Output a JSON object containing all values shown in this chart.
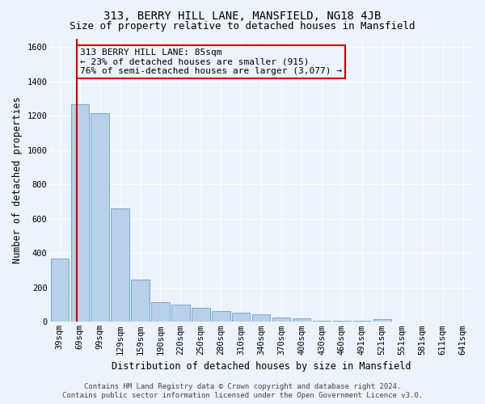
{
  "title": "313, BERRY HILL LANE, MANSFIELD, NG18 4JB",
  "subtitle": "Size of property relative to detached houses in Mansfield",
  "xlabel": "Distribution of detached houses by size in Mansfield",
  "ylabel": "Number of detached properties",
  "categories": [
    "39sqm",
    "69sqm",
    "99sqm",
    "129sqm",
    "159sqm",
    "190sqm",
    "220sqm",
    "250sqm",
    "280sqm",
    "310sqm",
    "340sqm",
    "370sqm",
    "400sqm",
    "430sqm",
    "460sqm",
    "491sqm",
    "521sqm",
    "551sqm",
    "581sqm",
    "611sqm",
    "641sqm"
  ],
  "values": [
    370,
    1265,
    1215,
    660,
    245,
    115,
    100,
    80,
    65,
    55,
    45,
    25,
    20,
    5,
    5,
    5,
    15,
    0,
    0,
    0,
    0
  ],
  "bar_color": "#b8d0ea",
  "bar_edge_color": "#6a9fc8",
  "vline_color": "#cc0000",
  "vline_x": 0.85,
  "ylim": [
    0,
    1650
  ],
  "yticks": [
    0,
    200,
    400,
    600,
    800,
    1000,
    1200,
    1400,
    1600
  ],
  "annotation_text": "313 BERRY HILL LANE: 85sqm\n← 23% of detached houses are smaller (915)\n76% of semi-detached houses are larger (3,077) →",
  "annotation_box_edge_color": "#cc0000",
  "footer_text": "Contains HM Land Registry data © Crown copyright and database right 2024.\nContains public sector information licensed under the Open Government Licence v3.0.",
  "bg_color": "#edf3fb",
  "grid_color": "#ffffff",
  "title_fontsize": 10,
  "subtitle_fontsize": 9,
  "axis_label_fontsize": 8.5,
  "tick_fontsize": 7.5,
  "annotation_fontsize": 8,
  "footer_fontsize": 6.5
}
